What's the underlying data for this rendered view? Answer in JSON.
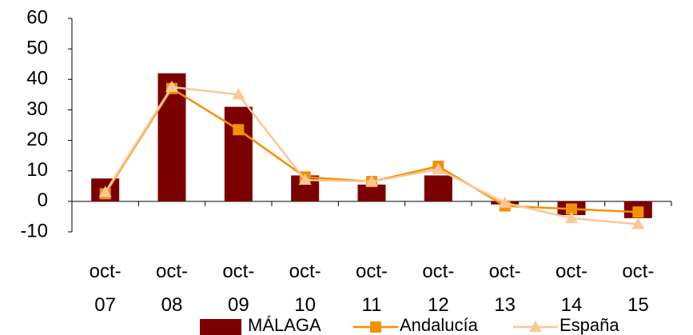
{
  "chart_data": {
    "type": "bar",
    "categories": [
      "oct-07",
      "oct-08",
      "oct-09",
      "oct-10",
      "oct-11",
      "oct-12",
      "oct-13",
      "oct-14",
      "oct-15"
    ],
    "series": [
      {
        "name": "MÁLAGA",
        "type": "bar",
        "color": "#7b0000",
        "values": [
          7.5,
          42,
          31,
          8.5,
          5.5,
          8.5,
          -1,
          -4.5,
          -5.5
        ]
      },
      {
        "name": "Andalucía",
        "type": "line",
        "marker": "square",
        "color": "#f39200",
        "values": [
          2.5,
          37,
          23.5,
          8,
          6.5,
          11.5,
          -1.5,
          -2.5,
          -3.5
        ]
      },
      {
        "name": "España",
        "type": "line",
        "marker": "triangle",
        "color": "#fbc796",
        "values": [
          3,
          37.5,
          35,
          7,
          6.5,
          10.5,
          -0.5,
          -5.5,
          -7.5
        ]
      }
    ],
    "ylim": [
      -10,
      60
    ],
    "yticks": [
      -10,
      0,
      10,
      20,
      30,
      40,
      50,
      60
    ],
    "legend": "bottom"
  }
}
